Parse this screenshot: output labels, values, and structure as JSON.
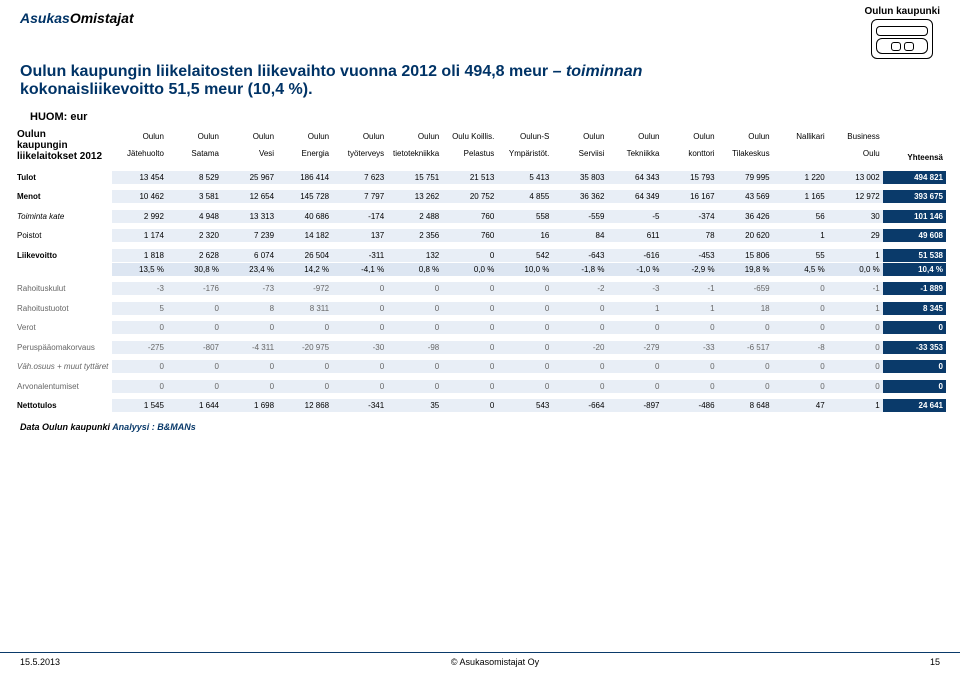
{
  "brand": {
    "part1": "Asukas",
    "part2": "Omistajat"
  },
  "badge": {
    "label": "Oulun kaupunki"
  },
  "title": {
    "line1a": "Oulun kaupungin liikelaitosten liikevaihto vuonna 2012 oli 494,8 meur ",
    "line1b": "– toiminnan",
    "line2": "kokonaisliikevoitto 51,5  meur (10,4 %)."
  },
  "huom": "HUOM: eur",
  "org_title": [
    "Oulun",
    "kaupungin",
    "liikelaitokset 2012"
  ],
  "columns": {
    "top": [
      "Oulun",
      "Oulun",
      "Oulun",
      "Oulun",
      "Oulun",
      "Oulun",
      "Oulu Koillis.",
      "Oulun-S",
      "Oulun",
      "Oulun",
      "Oulun",
      "Oulun",
      "Nallikari",
      "Business"
    ],
    "bot": [
      "Jätehuolto",
      "Satama",
      "Vesi",
      "Energia",
      "työterveys",
      "tietotekniikka",
      "Pelastus",
      "Ympäristöt.",
      "Serviisi",
      "Tekniikka",
      "konttori",
      "Tilakeskus",
      "",
      "Oulu"
    ],
    "total": "Yhteensä"
  },
  "rows": [
    {
      "key": "tulot",
      "label": "Tulot",
      "style": "band",
      "label_cls": "row-label",
      "vals": [
        "13 454",
        "8 529",
        "25 967",
        "186 414",
        "7 623",
        "15 751",
        "21 513",
        "5 413",
        "35 803",
        "64 343",
        "15 793",
        "79 995",
        "1 220",
        "13 002"
      ],
      "tot": "494 821"
    },
    {
      "key": "menot",
      "label": "Menot",
      "style": "band",
      "label_cls": "row-label",
      "vals": [
        "10 462",
        "3 581",
        "12 654",
        "145 728",
        "7 797",
        "13 262",
        "20 752",
        "4 855",
        "36 362",
        "64 349",
        "16 167",
        "43 569",
        "1 165",
        "12 972"
      ],
      "tot": "393 675"
    },
    {
      "key": "toimintakate",
      "label": "Toiminta kate",
      "style": "band",
      "label_cls": "row-label-i",
      "vals": [
        "2 992",
        "4 948",
        "13 313",
        "40 686",
        "-174",
        "2 488",
        "760",
        "558",
        "-559",
        "-5",
        "-374",
        "36 426",
        "56",
        "30"
      ],
      "tot": "101 146"
    },
    {
      "key": "poistot",
      "label": "Poistot",
      "style": "band",
      "label_cls": "row-label-plain",
      "vals": [
        "1 174",
        "2 320",
        "7 239",
        "14 182",
        "137",
        "2 356",
        "760",
        "16",
        "84",
        "611",
        "78",
        "20 620",
        "1",
        "29"
      ],
      "tot": "49 608"
    },
    {
      "key": "liikevoitto",
      "label": "Liikevoitto",
      "style": "band",
      "label_cls": "row-label",
      "vals": [
        "1 818",
        "2 628",
        "6 074",
        "26 504",
        "-311",
        "132",
        "0",
        "542",
        "-643",
        "-616",
        "-453",
        "15 806",
        "55",
        "1"
      ],
      "tot": "51 538"
    },
    {
      "key": "liikevoitto_pct",
      "label": "",
      "style": "band2 pct",
      "label_cls": "row-label",
      "vals": [
        "13,5 %",
        "30,8 %",
        "23,4 %",
        "14,2 %",
        "-4,1 %",
        "0,8 %",
        "0,0 %",
        "10,0 %",
        "-1,8 %",
        "-1,0 %",
        "-2,9 %",
        "19,8 %",
        "4,5 %",
        "0,0 %"
      ],
      "tot": "10,4 %"
    },
    {
      "key": "rahkulut",
      "label": "Rahoituskulut",
      "style": "band dim",
      "label_cls": "row-label-plain",
      "vals": [
        "-3",
        "-176",
        "-73",
        "-972",
        "0",
        "0",
        "0",
        "0",
        "-2",
        "-3",
        "-1",
        "-659",
        "0",
        "-1"
      ],
      "tot": "-1 889"
    },
    {
      "key": "rahtuotot",
      "label": "Rahoitustuotot",
      "style": "band dim",
      "label_cls": "row-label-plain",
      "vals": [
        "5",
        "0",
        "8",
        "8 311",
        "0",
        "0",
        "0",
        "0",
        "0",
        "1",
        "1",
        "18",
        "0",
        "1"
      ],
      "tot": "8 345"
    },
    {
      "key": "verot",
      "label": "Verot",
      "style": "band dim",
      "label_cls": "row-label-plain",
      "vals": [
        "0",
        "0",
        "0",
        "0",
        "0",
        "0",
        "0",
        "0",
        "0",
        "0",
        "0",
        "0",
        "0",
        "0"
      ],
      "tot": "0"
    },
    {
      "key": "perus",
      "label": "Peruspääomakorvaus",
      "style": "band dim",
      "label_cls": "row-label-plain",
      "vals": [
        "-275",
        "-807",
        "-4 311",
        "-20 975",
        "-30",
        "-98",
        "0",
        "0",
        "-20",
        "-279",
        "-33",
        "-6 517",
        "-8",
        "0"
      ],
      "tot": "-33 353"
    },
    {
      "key": "vahosuus",
      "label": "Väh.osuus + muut tyttäret",
      "style": "band dim",
      "label_cls": "row-label-i",
      "vals": [
        "0",
        "0",
        "0",
        "0",
        "0",
        "0",
        "0",
        "0",
        "0",
        "0",
        "0",
        "0",
        "0",
        "0"
      ],
      "tot": "0"
    },
    {
      "key": "arvon",
      "label": "Arvonalentumiset",
      "style": "band dim",
      "label_cls": "row-label-plain",
      "vals": [
        "0",
        "0",
        "0",
        "0",
        "0",
        "0",
        "0",
        "0",
        "0",
        "0",
        "0",
        "0",
        "0",
        "0"
      ],
      "tot": "0"
    },
    {
      "key": "netto",
      "label": "Nettotulos",
      "style": "band",
      "label_cls": "row-label",
      "vals": [
        "1 545",
        "1 644",
        "1 698",
        "12 868",
        "-341",
        "35",
        "0",
        "543",
        "-664",
        "-897",
        "-486",
        "8 648",
        "47",
        "1"
      ],
      "tot": "24 641"
    }
  ],
  "row_spacers_after": [
    "tulot",
    "menot",
    "toimintakate",
    "poistot",
    "liikevoitto_pct",
    "rahkulut",
    "rahtuotot",
    "verot",
    "perus",
    "vahosuus",
    "arvon"
  ],
  "footer_data": {
    "a": "Data Oulun kaupunki ",
    "b": "Analyysi : B&MANs"
  },
  "bottom": {
    "date": "15.5.2013",
    "copy": "© Asukasomistajat Oy",
    "page": "15"
  },
  "colors": {
    "brand_blue": "#003366",
    "band_bg": "#e8eef6",
    "band2_bg": "#dde6f2",
    "tot_bg": "#0a3a6a",
    "tot_fg": "#ffffff",
    "dim": "#666666"
  }
}
